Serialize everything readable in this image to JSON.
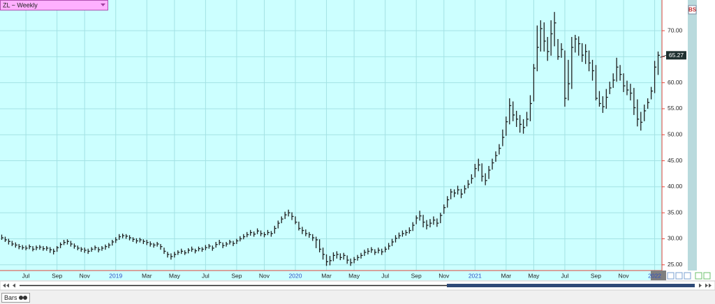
{
  "chart_data": {
    "type": "hlc",
    "title": "ZL ~ Weekly",
    "badge": "BS",
    "footer_tab": "Bars",
    "color": "#1e1e1e",
    "grid": true,
    "ylim": [
      23.9,
      75.9
    ],
    "yticks": [
      {
        "value": 25,
        "label": "25.00"
      },
      {
        "value": 30,
        "label": "30.00"
      },
      {
        "value": 35,
        "label": "35.00"
      },
      {
        "value": 40,
        "label": "40.00"
      },
      {
        "value": 45,
        "label": "45.00"
      },
      {
        "value": 50,
        "label": "50.00"
      },
      {
        "value": 55,
        "label": "55.00"
      },
      {
        "value": 60,
        "label": "60.00"
      },
      {
        "value": 65,
        "label": "65.00"
      },
      {
        "value": 70,
        "label": "70.00"
      }
    ],
    "categories": [
      null,
      null,
      null,
      null,
      null,
      null,
      null,
      "Jul",
      null,
      null,
      null,
      null,
      null,
      null,
      null,
      null,
      "Sep",
      null,
      null,
      null,
      null,
      null,
      null,
      null,
      "Nov",
      null,
      null,
      null,
      null,
      null,
      null,
      null,
      null,
      "2019",
      null,
      null,
      null,
      null,
      null,
      null,
      null,
      null,
      "Mar",
      null,
      null,
      null,
      null,
      null,
      null,
      null,
      "May",
      null,
      null,
      null,
      null,
      null,
      null,
      null,
      null,
      "Jul",
      null,
      null,
      null,
      null,
      null,
      null,
      null,
      null,
      "Sep",
      null,
      null,
      null,
      null,
      null,
      null,
      null,
      "Nov",
      null,
      null,
      null,
      null,
      null,
      null,
      null,
      null,
      "2020",
      null,
      null,
      null,
      null,
      null,
      null,
      null,
      null,
      "Mar",
      null,
      null,
      null,
      null,
      null,
      null,
      null,
      "May",
      null,
      null,
      null,
      null,
      null,
      null,
      null,
      null,
      "Jul",
      null,
      null,
      null,
      null,
      null,
      null,
      null,
      null,
      "Sep",
      null,
      null,
      null,
      null,
      null,
      null,
      null,
      "Nov",
      null,
      null,
      null,
      null,
      null,
      null,
      null,
      null,
      "2021",
      null,
      null,
      null,
      null,
      null,
      null,
      null,
      null,
      "Mar",
      null,
      null,
      null,
      null,
      null,
      null,
      null,
      "May",
      null,
      null,
      null,
      null,
      null,
      null,
      null,
      null,
      "Jul",
      null,
      null,
      null,
      null,
      null,
      null,
      null,
      null,
      "Sep",
      null,
      null,
      null,
      null,
      null,
      null,
      null,
      "Nov",
      null,
      null,
      null,
      null,
      null,
      null,
      null,
      null,
      "2022",
      null
    ],
    "high": [
      30.8,
      30.4,
      30.0,
      29.6,
      29.3,
      29.0,
      28.8,
      28.7,
      28.9,
      28.6,
      28.7,
      28.8,
      28.6,
      28.6,
      28.4,
      28.1,
      28.6,
      29.3,
      29.8,
      29.9,
      29.6,
      29.1,
      28.7,
      28.4,
      28.3,
      28.1,
      28.4,
      28.7,
      28.4,
      28.6,
      28.9,
      29.2,
      29.8,
      30.3,
      30.9,
      31.0,
      30.9,
      30.7,
      30.3,
      30.1,
      30.2,
      29.9,
      29.8,
      29.5,
      29.2,
      29.4,
      29.0,
      28.3,
      27.5,
      27.2,
      27.5,
      27.8,
      28.1,
      27.8,
      28.2,
      28.5,
      28.1,
      28.5,
      28.4,
      28.8,
      29.0,
      28.7,
      29.4,
      29.8,
      29.3,
      29.4,
      29.8,
      29.6,
      30.0,
      30.5,
      30.9,
      31.3,
      31.7,
      31.4,
      32.0,
      31.6,
      31.3,
      31.7,
      31.5,
      32.5,
      33.5,
      34.3,
      35.2,
      35.6,
      35.1,
      34.3,
      33.3,
      32.3,
      31.8,
      31.3,
      30.9,
      30.4,
      29.9,
      28.3,
      27.0,
      26.7,
      27.4,
      27.6,
      27.2,
      27.3,
      26.8,
      26.2,
      26.5,
      26.9,
      27.3,
      27.9,
      28.2,
      28.4,
      28.0,
      28.3,
      28.1,
      28.5,
      29.2,
      30.0,
      30.7,
      31.2,
      31.6,
      31.7,
      32.2,
      33.2,
      34.5,
      35.4,
      34.6,
      33.6,
      33.8,
      34.3,
      33.9,
      35.0,
      36.6,
      38.2,
      39.6,
      39.5,
      40.2,
      39.6,
      40.3,
      41.3,
      42.4,
      44.4,
      45.4,
      44.5,
      42.6,
      44.0,
      45.4,
      46.8,
      48.2,
      51.0,
      53.5,
      57.0,
      56.4,
      54.6,
      53.8,
      53.0,
      54.4,
      57.6,
      63.6,
      71.0,
      72.0,
      71.6,
      68.8,
      72.0,
      73.6,
      68.4,
      67.6,
      66.2,
      64.4,
      68.8,
      69.2,
      68.9,
      67.6,
      67.4,
      66.2,
      64.4,
      63.4,
      58.4,
      57.4,
      58.8,
      60.2,
      61.8,
      64.8,
      63.4,
      61.8,
      60.4,
      59.8,
      59.0,
      56.8,
      54.4,
      55.8,
      57.0,
      59.2,
      64.2,
      66.0
    ],
    "low": [
      29.8,
      29.4,
      28.9,
      28.6,
      28.3,
      28.0,
      27.9,
      27.8,
      28.0,
      27.6,
      27.8,
      27.9,
      27.7,
      27.7,
      27.3,
      27.0,
      27.5,
      28.2,
      28.8,
      28.9,
      28.5,
      28.1,
      27.8,
      27.5,
      27.3,
      27.1,
      27.5,
      27.8,
      27.4,
      27.7,
      27.9,
      28.2,
      28.7,
      29.2,
      29.8,
      30.1,
      30.0,
      29.7,
      29.4,
      29.1,
      29.3,
      29.0,
      28.8,
      28.5,
      28.3,
      28.5,
      27.9,
      27.1,
      26.4,
      26.0,
      26.4,
      26.9,
      27.1,
      26.9,
      27.2,
      27.5,
      27.2,
      27.6,
      27.5,
      27.8,
      28.1,
      27.7,
      28.3,
      28.8,
      28.2,
      28.5,
      28.9,
      28.6,
      29.0,
      29.5,
      29.9,
      30.3,
      30.6,
      30.4,
      30.9,
      30.5,
      30.3,
      30.7,
      30.4,
      31.0,
      32.0,
      33.0,
      33.8,
      34.3,
      33.6,
      32.8,
      31.6,
      30.9,
      30.5,
      30.2,
      29.6,
      28.2,
      27.4,
      26.0,
      24.8,
      24.9,
      25.7,
      26.2,
      25.9,
      26.0,
      25.2,
      24.8,
      25.3,
      25.8,
      26.2,
      26.7,
      27.0,
      27.3,
      26.9,
      27.2,
      26.9,
      27.4,
      27.9,
      28.6,
      29.3,
      30.0,
      30.4,
      30.6,
      31.0,
      31.5,
      32.8,
      33.5,
      32.2,
      31.8,
      32.2,
      32.7,
      32.3,
      33.0,
      34.8,
      36.0,
      37.6,
      38.0,
      38.5,
      37.8,
      38.7,
      39.7,
      40.6,
      41.8,
      43.0,
      41.0,
      40.3,
      41.5,
      43.3,
      44.8,
      46.2,
      47.8,
      49.8,
      52.0,
      52.6,
      51.5,
      50.4,
      50.2,
      51.6,
      52.6,
      56.4,
      62.2,
      66.0,
      66.0,
      64.2,
      65.2,
      67.0,
      64.4,
      64.8,
      55.4,
      56.6,
      58.8,
      65.8,
      65.2,
      64.0,
      63.6,
      62.2,
      60.4,
      56.6,
      55.4,
      54.2,
      55.0,
      57.8,
      59.0,
      60.2,
      60.4,
      58.2,
      57.6,
      56.6,
      53.8,
      51.6,
      50.8,
      52.6,
      55.0,
      56.8,
      58.0,
      61.5
    ],
    "close": [
      30.2,
      29.8,
      29.5,
      29.0,
      28.8,
      28.5,
      28.3,
      28.2,
      28.5,
      28.0,
      28.3,
      28.4,
      28.1,
      28.2,
      27.9,
      27.6,
      28.3,
      28.9,
      29.3,
      29.5,
      29.0,
      28.6,
      28.2,
      28.0,
      27.8,
      27.6,
      28.0,
      28.3,
      27.9,
      28.2,
      28.5,
      28.8,
      29.4,
      29.8,
      30.4,
      30.6,
      30.5,
      30.2,
      29.9,
      29.6,
      29.8,
      29.5,
      29.3,
      29.0,
      28.8,
      29.0,
      28.5,
      27.6,
      27.0,
      26.6,
      27.0,
      27.4,
      27.6,
      27.3,
      27.8,
      28.0,
      27.7,
      28.1,
      28.0,
      28.3,
      28.6,
      28.2,
      28.9,
      29.3,
      28.7,
      29.0,
      29.4,
      29.1,
      29.6,
      30.0,
      30.4,
      30.8,
      31.2,
      30.9,
      31.5,
      31.0,
      30.8,
      31.2,
      31.0,
      32.0,
      33.0,
      33.8,
      34.6,
      35.0,
      34.3,
      33.2,
      32.0,
      31.6,
      31.0,
      30.8,
      30.2,
      29.8,
      28.0,
      27.0,
      25.6,
      25.8,
      26.8,
      27.0,
      26.4,
      26.8,
      25.9,
      25.4,
      26.0,
      26.4,
      26.8,
      27.4,
      27.6,
      27.9,
      27.4,
      27.8,
      27.5,
      28.0,
      28.6,
      29.4,
      30.1,
      30.6,
      31.0,
      31.2,
      31.6,
      32.6,
      34.0,
      34.4,
      33.2,
      32.6,
      33.0,
      33.6,
      33.0,
      34.5,
      36.0,
      37.5,
      39.0,
      38.8,
      39.4,
      38.6,
      39.6,
      40.5,
      41.6,
      43.5,
      44.2,
      42.0,
      41.2,
      43.2,
      44.6,
      46.0,
      47.4,
      49.5,
      52.5,
      55.6,
      53.8,
      53.0,
      52.0,
      51.4,
      53.0,
      56.0,
      62.8,
      66.8,
      70.4,
      68.0,
      66.0,
      69.4,
      71.5,
      65.0,
      66.4,
      57.0,
      59.8,
      66.8,
      68.4,
      67.5,
      65.3,
      66.0,
      63.8,
      62.3,
      57.0,
      56.0,
      55.4,
      57.2,
      59.0,
      60.5,
      63.0,
      61.6,
      59.4,
      58.6,
      58.0,
      55.2,
      53.0,
      52.4,
      54.6,
      56.2,
      58.4,
      63.0,
      65.27
    ]
  }
}
